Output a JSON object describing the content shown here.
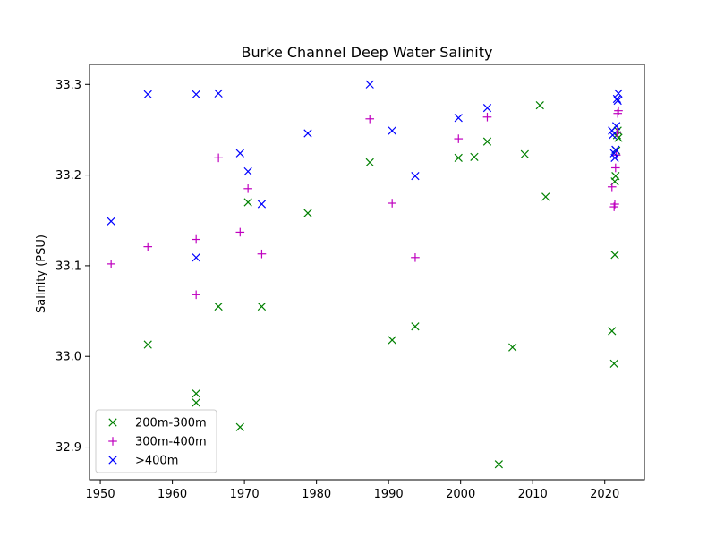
{
  "chart_data": {
    "type": "scatter",
    "title": "Burke Channel Deep Water Salinity",
    "xlabel": "",
    "ylabel": "Salinity (PSU)",
    "xlim": [
      1948.5,
      2025.5
    ],
    "ylim": [
      32.864,
      33.322
    ],
    "xticks": [
      1950,
      1960,
      1970,
      1980,
      1990,
      2000,
      2010,
      2020
    ],
    "yticks": [
      32.9,
      33.0,
      33.1,
      33.2,
      33.3
    ],
    "grid": false,
    "legend_position": "lower-left",
    "series": [
      {
        "name": "200m-300m",
        "marker": "x",
        "color": "#008000",
        "points": [
          [
            1956.6,
            33.013
          ],
          [
            1963.3,
            32.959
          ],
          [
            1963.3,
            32.949
          ],
          [
            1966.4,
            33.055
          ],
          [
            1969.4,
            32.922
          ],
          [
            1970.5,
            33.17
          ],
          [
            1972.4,
            33.055
          ],
          [
            1978.8,
            33.158
          ],
          [
            1987.4,
            33.214
          ],
          [
            1990.5,
            33.018
          ],
          [
            1993.7,
            33.033
          ],
          [
            1999.7,
            33.219
          ],
          [
            2001.9,
            33.22
          ],
          [
            2003.7,
            33.237
          ],
          [
            2005.3,
            32.881
          ],
          [
            2007.2,
            33.01
          ],
          [
            2008.9,
            33.223
          ],
          [
            2011.0,
            33.277
          ],
          [
            2011.8,
            33.176
          ],
          [
            2021.0,
            33.028
          ],
          [
            2021.3,
            32.992
          ],
          [
            2021.4,
            33.112
          ],
          [
            2021.4,
            33.193
          ],
          [
            2021.5,
            33.199
          ],
          [
            2021.6,
            33.227
          ],
          [
            2021.7,
            33.244
          ],
          [
            2021.8,
            33.249
          ],
          [
            2021.9,
            33.241
          ]
        ]
      },
      {
        "name": "300m-400m",
        "marker": "+",
        "color": "#bf00bf",
        "points": [
          [
            1951.5,
            33.102
          ],
          [
            1956.6,
            33.121
          ],
          [
            1963.3,
            33.129
          ],
          [
            1963.3,
            33.068
          ],
          [
            1966.4,
            33.219
          ],
          [
            1969.4,
            33.137
          ],
          [
            1970.5,
            33.185
          ],
          [
            1972.4,
            33.113
          ],
          [
            1987.4,
            33.262
          ],
          [
            1990.5,
            33.169
          ],
          [
            1993.7,
            33.109
          ],
          [
            1999.7,
            33.24
          ],
          [
            2003.7,
            33.264
          ],
          [
            2021.0,
            33.187
          ],
          [
            2021.3,
            33.165
          ],
          [
            2021.4,
            33.168
          ],
          [
            2021.5,
            33.208
          ],
          [
            2021.6,
            33.222
          ],
          [
            2021.7,
            33.247
          ],
          [
            2021.8,
            33.268
          ],
          [
            2021.9,
            33.271
          ]
        ]
      },
      {
        "name": ">400m",
        "marker": "x",
        "color": "#0000ff",
        "points": [
          [
            1951.5,
            33.149
          ],
          [
            1956.6,
            33.289
          ],
          [
            1963.3,
            33.289
          ],
          [
            1963.3,
            33.109
          ],
          [
            1966.4,
            33.29
          ],
          [
            1969.4,
            33.224
          ],
          [
            1970.5,
            33.204
          ],
          [
            1972.4,
            33.168
          ],
          [
            1978.8,
            33.246
          ],
          [
            1987.4,
            33.3
          ],
          [
            1990.5,
            33.249
          ],
          [
            1993.7,
            33.199
          ],
          [
            1999.7,
            33.263
          ],
          [
            2003.7,
            33.274
          ],
          [
            2021.0,
            33.249
          ],
          [
            2021.1,
            33.244
          ],
          [
            2021.3,
            33.224
          ],
          [
            2021.4,
            33.219
          ],
          [
            2021.5,
            33.228
          ],
          [
            2021.6,
            33.254
          ],
          [
            2021.7,
            33.284
          ],
          [
            2021.8,
            33.282
          ],
          [
            2021.9,
            33.29
          ]
        ]
      }
    ]
  }
}
